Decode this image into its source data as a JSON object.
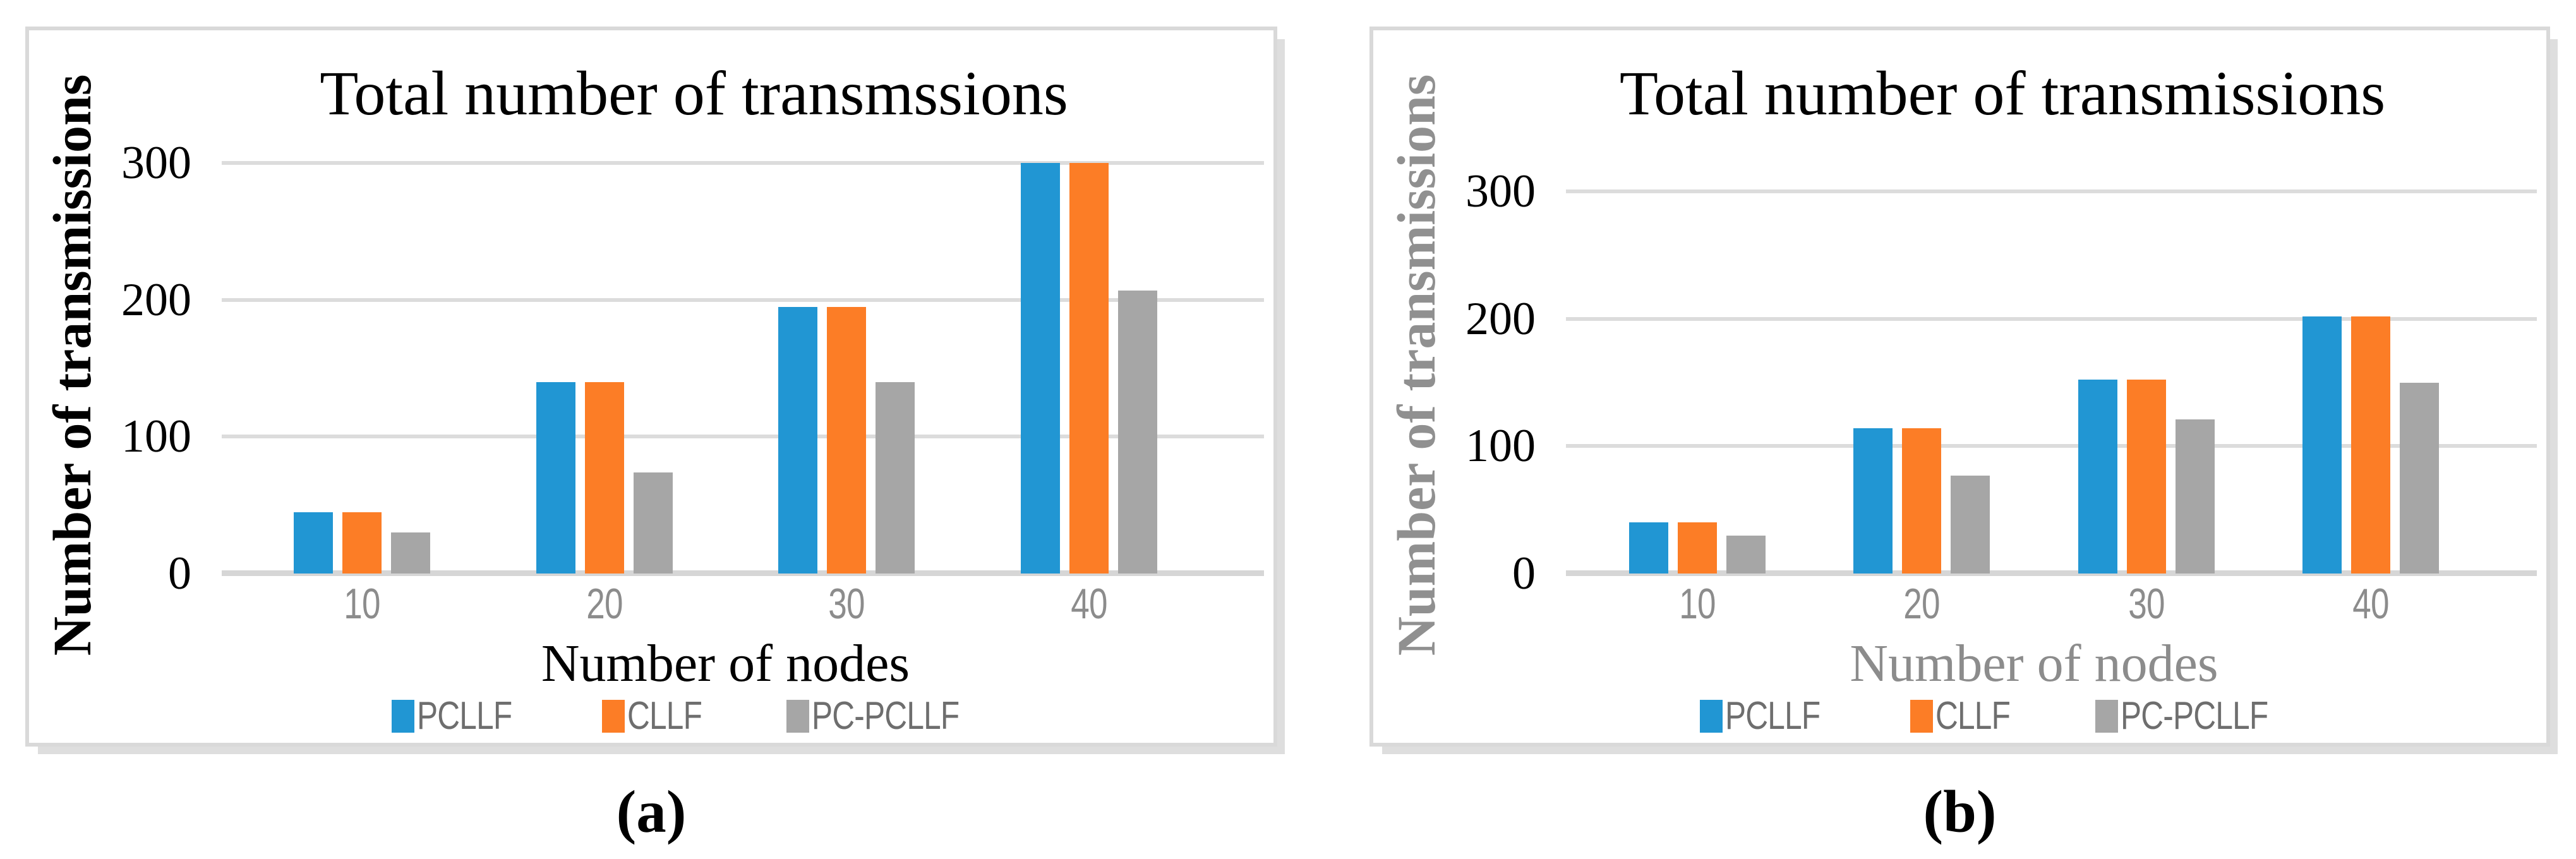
{
  "page": {
    "background": "#ffffff"
  },
  "palette": {
    "blue": "#2196D3",
    "orange": "#FC7D26",
    "gray": "#A6A6A6",
    "gridline": "#DCDCDC",
    "baseline": "#D6D6D6",
    "panel_border": "#D9D9D9"
  },
  "captions": {
    "a": "(a)",
    "b": "(b)"
  },
  "chart_data": [
    {
      "id": "a",
      "type": "bar",
      "title": "Total number of transmssions",
      "xlabel": "Number of nodes",
      "ylabel": "Number of transmissions",
      "categories": [
        "10",
        "20",
        "30",
        "40"
      ],
      "series": [
        {
          "name": "PCLLF",
          "color": "#2196D3",
          "values": [
            45,
            140,
            195,
            300
          ]
        },
        {
          "name": "CLLF",
          "color": "#FC7D26",
          "values": [
            45,
            140,
            195,
            300
          ]
        },
        {
          "name": "PC-PCLLF",
          "color": "#A6A6A6",
          "values": [
            30,
            74,
            140,
            207
          ]
        }
      ],
      "y_ticks": [
        0,
        100,
        200,
        300
      ],
      "ylim": [
        0,
        300
      ],
      "grid": true,
      "legend_position": "bottom",
      "text_colors": {
        "title": "#000000",
        "ylabel": "#000000",
        "xlabel": "#000000",
        "y_ticks": "#000000",
        "x_ticks": "#8C8C8C",
        "legend": "#6E6E6E"
      }
    },
    {
      "id": "b",
      "type": "bar",
      "title": "Total number of transmissions",
      "xlabel": "Number of nodes",
      "ylabel": "Number of transmissions",
      "categories": [
        "10",
        "20",
        "30",
        "40"
      ],
      "series": [
        {
          "name": "PCLLF",
          "color": "#2196D3",
          "values": [
            40,
            114,
            152,
            202
          ]
        },
        {
          "name": "CLLF",
          "color": "#FC7D26",
          "values": [
            40,
            114,
            152,
            202
          ]
        },
        {
          "name": "PC-PCLLF",
          "color": "#A6A6A6",
          "values": [
            30,
            77,
            121,
            150
          ]
        }
      ],
      "y_ticks": [
        0,
        100,
        200,
        300
      ],
      "ylim": [
        0,
        300
      ],
      "grid": true,
      "legend_position": "bottom",
      "text_colors": {
        "title": "#000000",
        "ylabel": "#909090",
        "xlabel": "#8C8C8C",
        "y_ticks": "#000000",
        "x_ticks": "#8C8C8C",
        "legend": "#6E6E6E"
      }
    }
  ]
}
